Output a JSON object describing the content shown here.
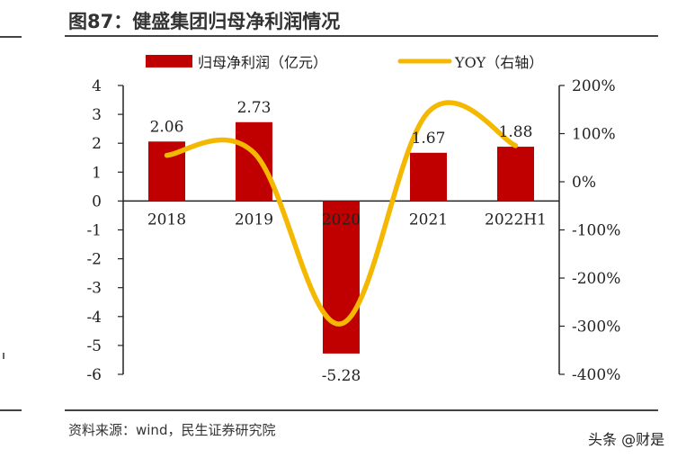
{
  "page": {
    "title": "图87：健盛集团归母净利润情况",
    "source": "资料来源：wind，民生证券研究院",
    "watermark": "头条 @财是"
  },
  "chart_data": {
    "type": "bar",
    "categories": [
      "2018",
      "2019",
      "2020",
      "2021",
      "2022H1"
    ],
    "series": [
      {
        "name": "归母净利润（亿元）",
        "kind": "bar",
        "axis": "left",
        "color": "#c00000",
        "values": [
          2.06,
          2.73,
          -5.28,
          1.67,
          1.88
        ],
        "labels": [
          "2.06",
          "2.73",
          "-5.28",
          "1.67",
          "1.88"
        ]
      },
      {
        "name": "YOY（右轴）",
        "kind": "line",
        "axis": "right",
        "color": "#f5b800",
        "values": [
          55,
          60,
          -295,
          145,
          75
        ],
        "unit": "%"
      }
    ],
    "left_axis": {
      "ylim": [
        -6,
        4
      ],
      "ticks": [
        "4",
        "3",
        "2",
        "1",
        "0",
        "-1",
        "-2",
        "-3",
        "-4",
        "-5",
        "-6"
      ]
    },
    "right_axis": {
      "ylim": [
        -400,
        200
      ],
      "ticks": [
        "200%",
        "100%",
        "0%",
        "-100%",
        "-200%",
        "-300%",
        "-400%"
      ]
    },
    "legend_position": "top-center",
    "grid": false
  }
}
